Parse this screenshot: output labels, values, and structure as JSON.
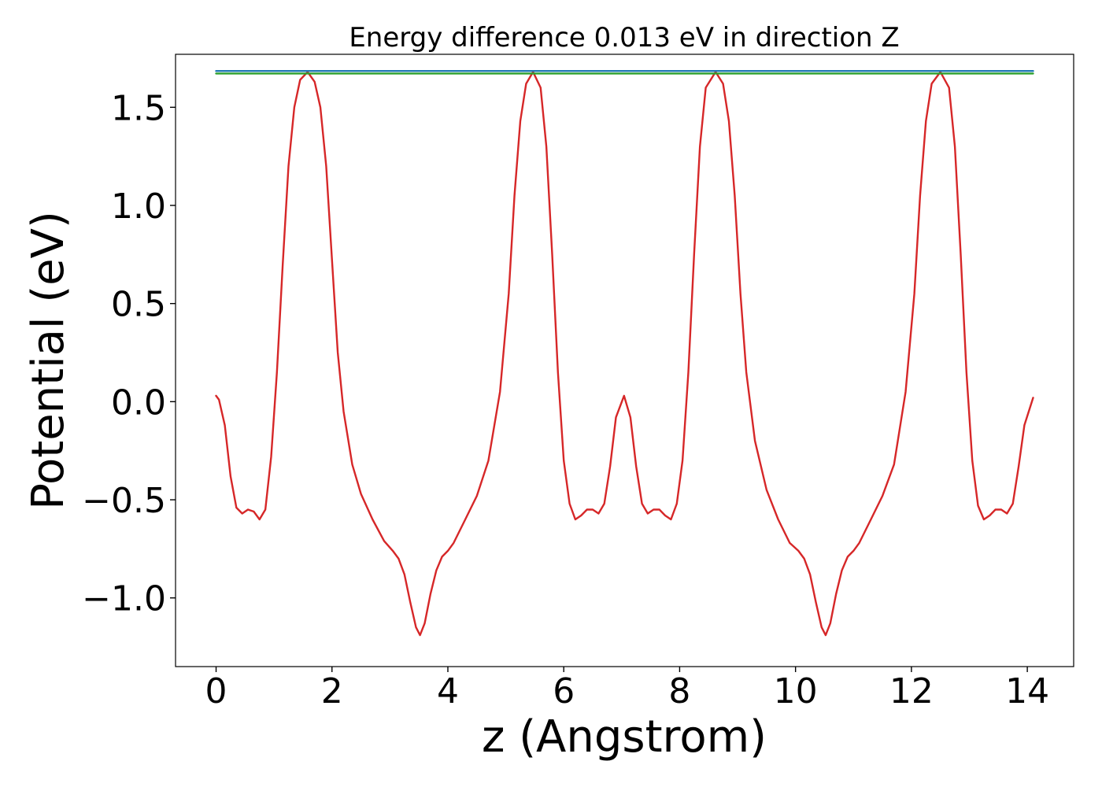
{
  "chart_data": {
    "type": "line",
    "title": "Energy difference 0.013 eV in direction Z",
    "xlabel": "z (Angstrom)",
    "ylabel": "Potential (eV)",
    "xlim": [
      -0.7,
      14.8
    ],
    "ylim": [
      -1.35,
      1.77
    ],
    "xticks": [
      0,
      2,
      4,
      6,
      8,
      10,
      12,
      14
    ],
    "yticks": [
      -1.0,
      -0.5,
      0.0,
      0.5,
      1.0,
      1.5
    ],
    "ytick_labels": [
      "−1.0",
      "−0.5",
      "0.0",
      "0.5",
      "1.0",
      "1.5"
    ],
    "grid": false,
    "legend": "none",
    "series": [
      {
        "color": "#1f77b4",
        "kind": "hline",
        "x": [
          0,
          14.1
        ],
        "y": [
          1.685,
          1.685
        ]
      },
      {
        "color": "#2ca02c",
        "kind": "hline",
        "x": [
          0,
          14.1
        ],
        "y": [
          1.672,
          1.672
        ]
      },
      {
        "color": "#d62728",
        "kind": "curve",
        "x": [
          0.0,
          0.05,
          0.15,
          0.25,
          0.35,
          0.45,
          0.55,
          0.65,
          0.75,
          0.85,
          0.95,
          1.05,
          1.15,
          1.25,
          1.35,
          1.45,
          1.58,
          1.7,
          1.8,
          1.9,
          2.0,
          2.1,
          2.2,
          2.35,
          2.5,
          2.7,
          2.9,
          3.05,
          3.15,
          3.25,
          3.35,
          3.45,
          3.52,
          3.6,
          3.7,
          3.8,
          3.9,
          4.0,
          4.1,
          4.3,
          4.5,
          4.7,
          4.9,
          5.05,
          5.15,
          5.25,
          5.35,
          5.47,
          5.6,
          5.7,
          5.8,
          5.9,
          6.0,
          6.1,
          6.2,
          6.3,
          6.4,
          6.5,
          6.6,
          6.7,
          6.8,
          6.9,
          7.04,
          7.15,
          7.25,
          7.35,
          7.45,
          7.55,
          7.65,
          7.75,
          7.85,
          7.95,
          8.05,
          8.15,
          8.25,
          8.35,
          8.45,
          8.62,
          8.75,
          8.85,
          8.95,
          9.05,
          9.15,
          9.3,
          9.5,
          9.7,
          9.9,
          10.05,
          10.15,
          10.25,
          10.35,
          10.45,
          10.52,
          10.6,
          10.7,
          10.8,
          10.9,
          11.0,
          11.1,
          11.3,
          11.5,
          11.7,
          11.9,
          12.05,
          12.15,
          12.25,
          12.35,
          12.5,
          12.65,
          12.75,
          12.85,
          12.95,
          13.05,
          13.15,
          13.25,
          13.35,
          13.45,
          13.55,
          13.65,
          13.75,
          13.85,
          13.95,
          14.1
        ],
        "y": [
          0.03,
          0.01,
          -0.12,
          -0.38,
          -0.54,
          -0.57,
          -0.55,
          -0.56,
          -0.6,
          -0.55,
          -0.28,
          0.15,
          0.7,
          1.2,
          1.5,
          1.64,
          1.68,
          1.63,
          1.5,
          1.2,
          0.72,
          0.25,
          -0.05,
          -0.32,
          -0.47,
          -0.6,
          -0.71,
          -0.76,
          -0.8,
          -0.88,
          -1.02,
          -1.15,
          -1.19,
          -1.13,
          -0.98,
          -0.86,
          -0.79,
          -0.76,
          -0.72,
          -0.6,
          -0.48,
          -0.3,
          0.05,
          0.55,
          1.05,
          1.43,
          1.62,
          1.68,
          1.6,
          1.3,
          0.75,
          0.15,
          -0.3,
          -0.52,
          -0.6,
          -0.58,
          -0.55,
          -0.55,
          -0.57,
          -0.52,
          -0.33,
          -0.08,
          0.03,
          -0.08,
          -0.33,
          -0.52,
          -0.57,
          -0.55,
          -0.55,
          -0.58,
          -0.6,
          -0.52,
          -0.3,
          0.15,
          0.75,
          1.3,
          1.6,
          1.68,
          1.62,
          1.43,
          1.05,
          0.55,
          0.15,
          -0.2,
          -0.45,
          -0.6,
          -0.72,
          -0.76,
          -0.8,
          -0.88,
          -1.02,
          -1.15,
          -1.19,
          -1.13,
          -0.98,
          -0.86,
          -0.79,
          -0.76,
          -0.72,
          -0.6,
          -0.48,
          -0.32,
          0.05,
          0.55,
          1.05,
          1.43,
          1.62,
          1.68,
          1.6,
          1.3,
          0.75,
          0.15,
          -0.3,
          -0.53,
          -0.6,
          -0.58,
          -0.55,
          -0.55,
          -0.57,
          -0.52,
          -0.33,
          -0.12,
          0.02
        ]
      }
    ]
  }
}
